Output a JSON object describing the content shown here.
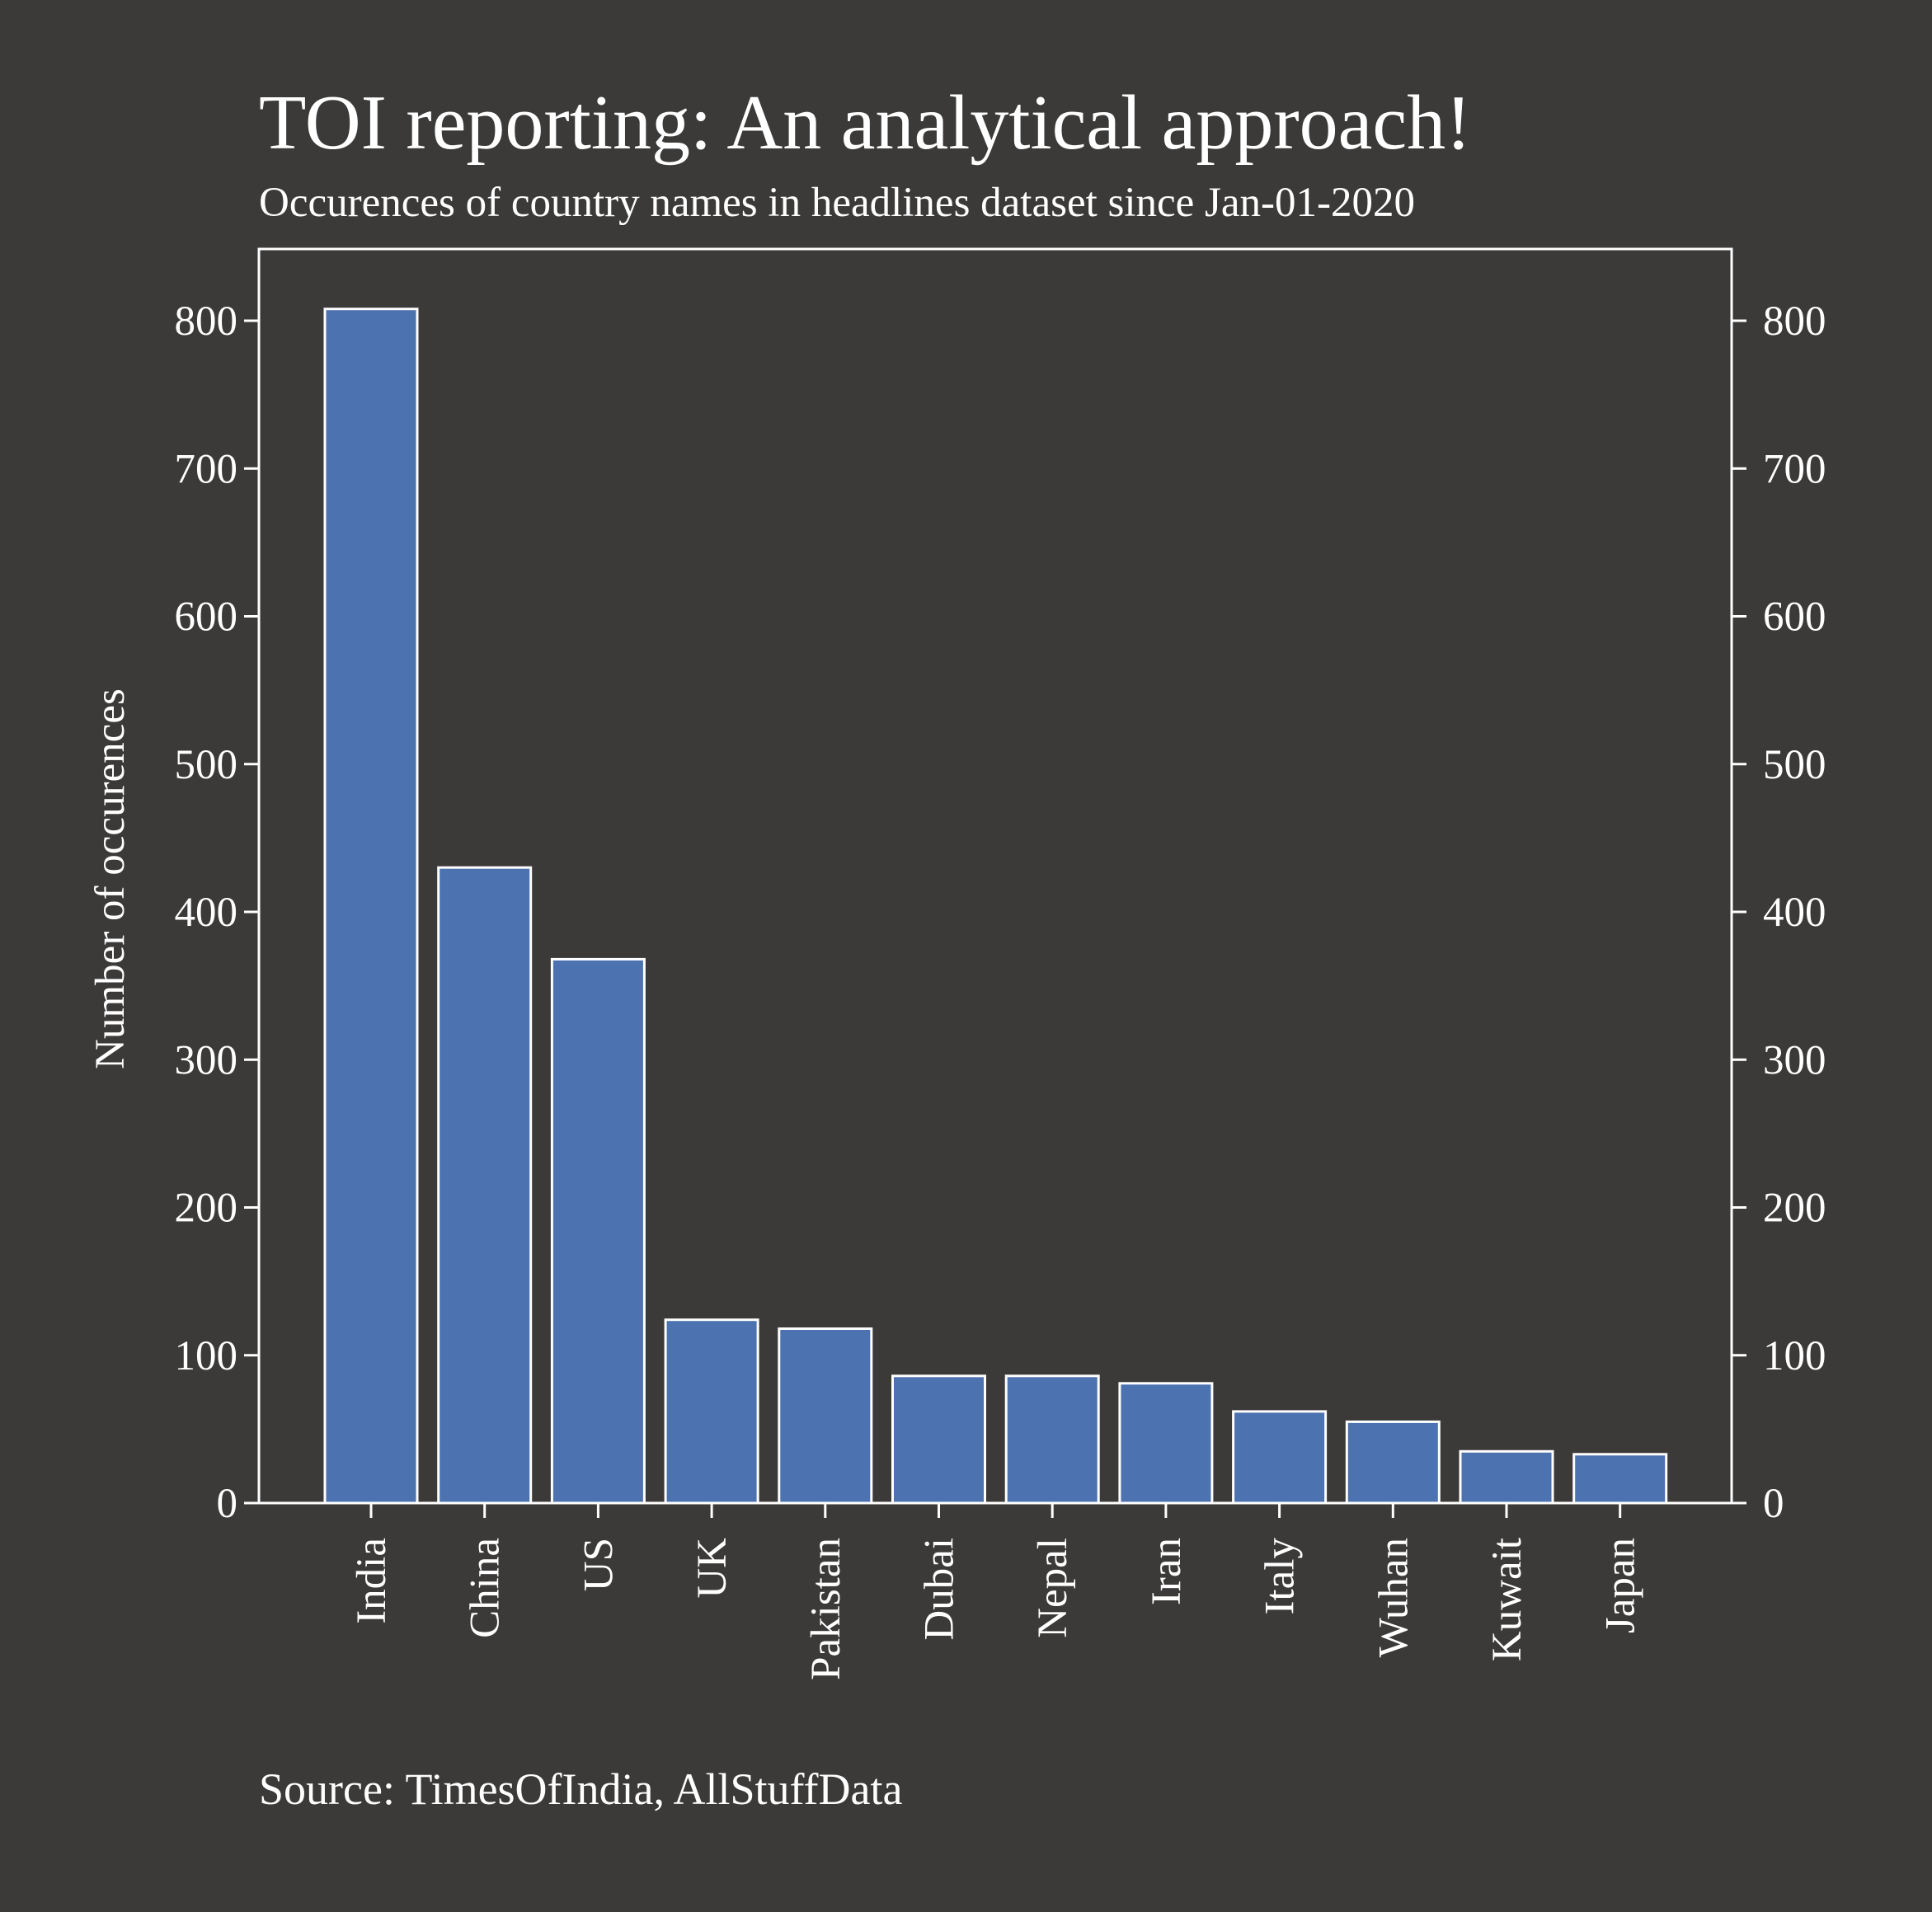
{
  "chart_data": {
    "type": "bar",
    "title": "TOI reporting: An analytical approach!",
    "subtitle": "Occurences of country names in headlines dataset since Jan-01-2020",
    "ylabel": "Number of occurences",
    "xlabel": "",
    "source": "Source: TimesOfIndia, AllStuffData",
    "categories": [
      "India",
      "China",
      "US",
      "UK",
      "Pakistan",
      "Dubai",
      "Nepal",
      "Iran",
      "Italy",
      "Wuhan",
      "Kuwait",
      "Japan"
    ],
    "values": [
      808,
      430,
      368,
      124,
      118,
      86,
      86,
      81,
      62,
      55,
      35,
      33
    ],
    "ylim": [
      0,
      850
    ],
    "yticks": [
      0,
      100,
      200,
      300,
      400,
      500,
      600,
      700,
      800
    ],
    "grid": false,
    "legend": "none",
    "bar_color": "#4c72b0",
    "bar_edge_color": "#ffffff",
    "background_color": "#3b3a39",
    "text_color": "#ffffff"
  }
}
